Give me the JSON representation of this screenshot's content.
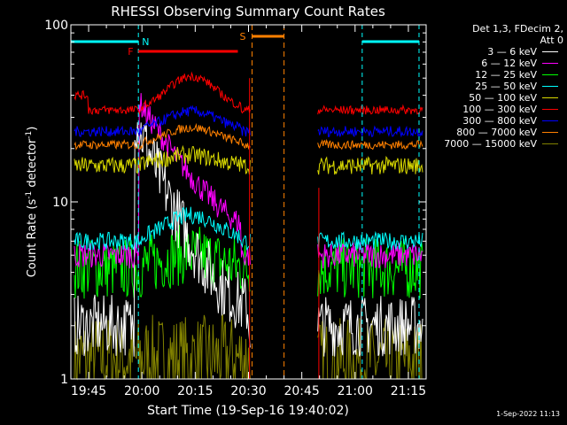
{
  "chart_data": {
    "type": "line",
    "title": "RHESSI Observing Summary Count Rates",
    "xlabel": "Start Time (19-Sep-16 19:40:02)",
    "ylabel": "Count Rate (s⁻¹ detector⁻¹)",
    "ylabel_main": "Count Rate (s",
    "ylabel_sup1": "-1",
    "ylabel_mid": " detector",
    "ylabel_sup2": "-1",
    "ylabel_end": ")",
    "yscale": "log",
    "ylim": [
      1,
      100
    ],
    "y_tick_labels": [
      "1",
      "10",
      "100"
    ],
    "xlim_minutes": [
      0,
      100
    ],
    "x_tick_labels": [
      "19:45",
      "20:00",
      "20:15",
      "20:30",
      "20:45",
      "21:00",
      "21:15"
    ],
    "x_tick_minutes": [
      5,
      20,
      35,
      50,
      65,
      80,
      95
    ],
    "legend_header": [
      "Det 1,3, FDecim 2,",
      "Att 0"
    ],
    "legend_placement": "right",
    "series": [
      {
        "name": "3 — 6 keV",
        "color": "#ffffff"
      },
      {
        "name": "6 — 12 keV",
        "color": "#ff00ff"
      },
      {
        "name": "12 — 25 keV",
        "color": "#00ff00"
      },
      {
        "name": "25 — 50 keV",
        "color": "#00ffff"
      },
      {
        "name": "50 — 100 keV",
        "color": "#d8d800"
      },
      {
        "name": "100 — 300 keV",
        "color": "#ff0000"
      },
      {
        "name": "300 — 800 keV",
        "color": "#0000ff"
      },
      {
        "name": "800 — 7000 keV",
        "color": "#ff8000"
      },
      {
        "name": "7000 — 15000 keV",
        "color": "#808000"
      }
    ],
    "series_levels_counts": {
      "100-300": 35,
      "300-800": 25,
      "800-7000": 21,
      "50-100": 16,
      "25-50": 6,
      "12-25": 4.5,
      "6-12": 5,
      "3-6": 2,
      "7000-15000": 1.5
    },
    "gaps_minutes": [
      [
        50.5,
        63
      ],
      [
        63,
        69.5
      ]
    ],
    "night_markers": {
      "label": "N",
      "color": "#00ffff",
      "segments_minutes": [
        [
          0,
          19
        ],
        [
          82,
          98
        ]
      ]
    },
    "flare_marker": {
      "label": "F",
      "color": "#ff0000",
      "segment_minutes": [
        19,
        47
      ]
    },
    "saa_marker": {
      "label": "S",
      "color": "#ff8000",
      "segment_minutes": [
        51,
        60
      ]
    },
    "vlines_minutes": {
      "cyan": [
        19,
        82,
        98
      ],
      "orange": [
        51,
        60
      ]
    },
    "grid": false
  },
  "timestamp": "1-Sep-2022 11:13"
}
